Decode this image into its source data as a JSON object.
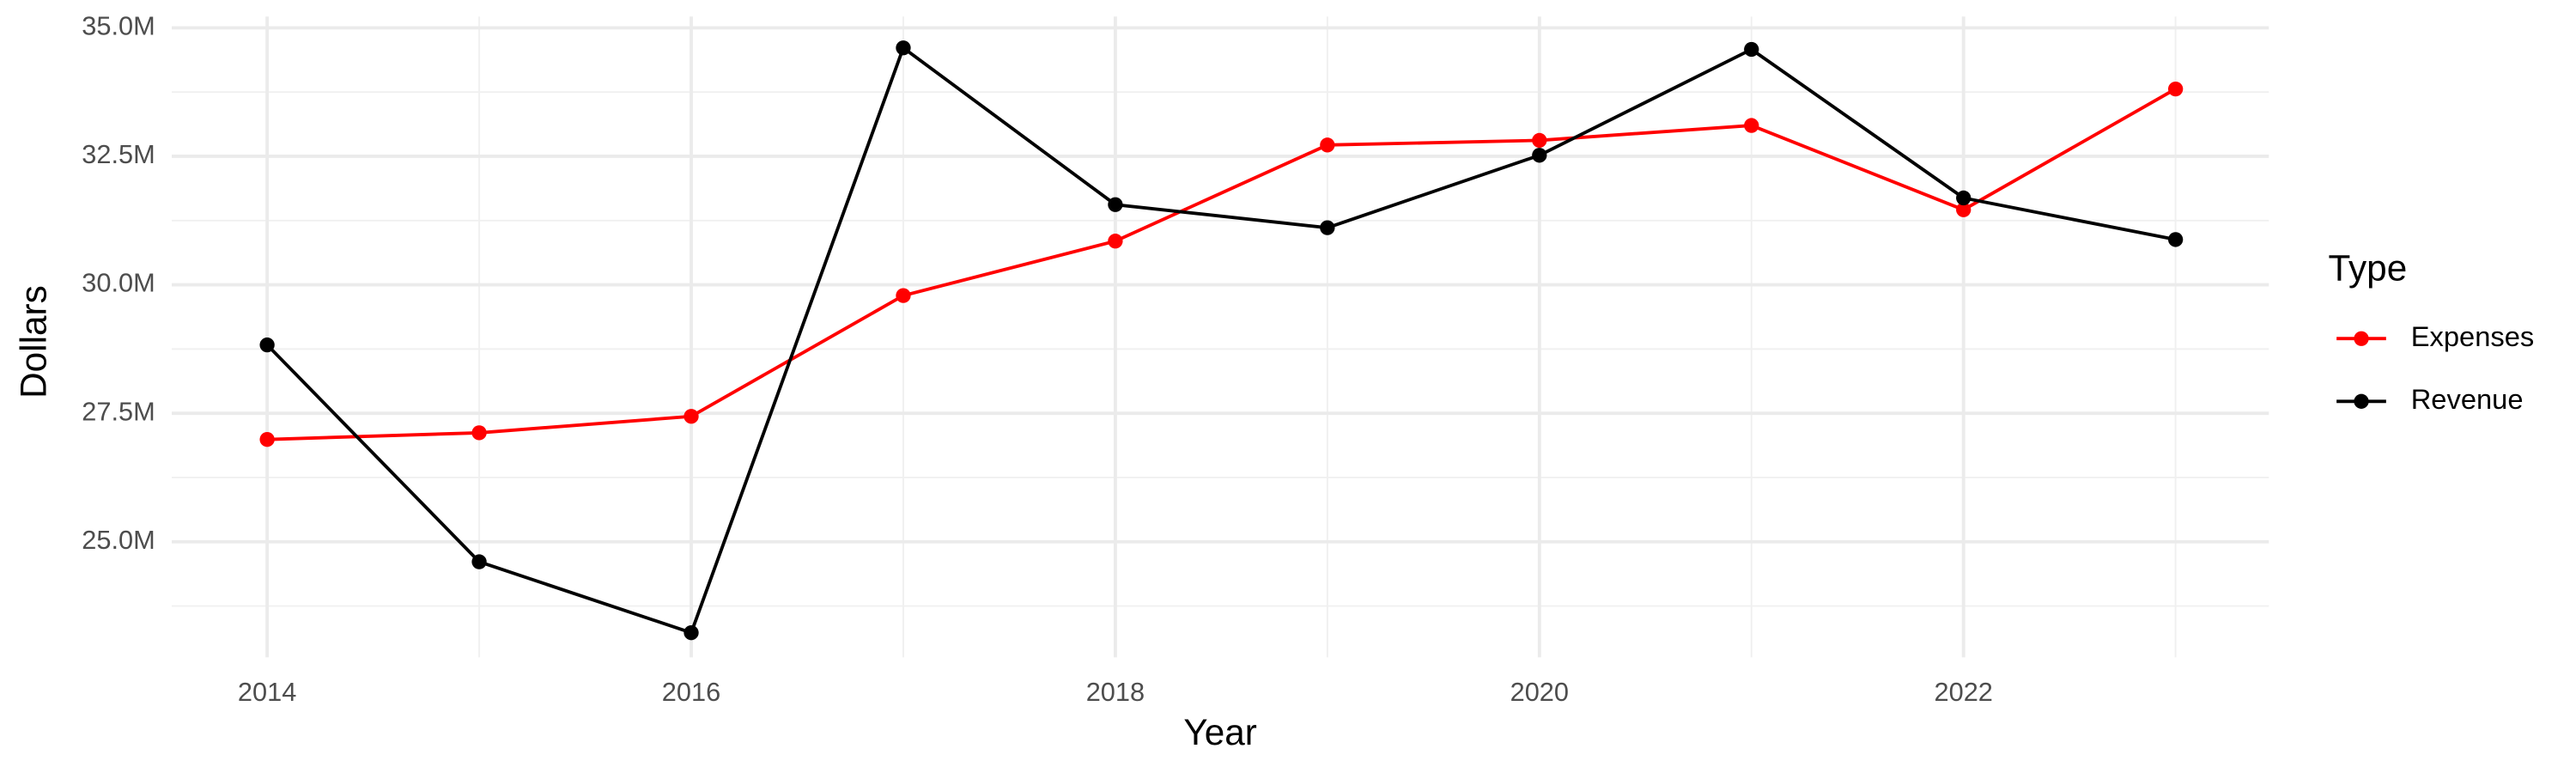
{
  "chart_data": {
    "type": "line",
    "x_label": "Year",
    "y_label": "Dollars",
    "legend_title": "Type",
    "legend_position": "right",
    "grid": true,
    "x": [
      2014,
      2015,
      2016,
      2017,
      2018,
      2019,
      2020,
      2021,
      2022,
      2023
    ],
    "xlim": [
      2013.55,
      2023.44
    ],
    "xticks": [
      2014,
      2016,
      2018,
      2020,
      2022
    ],
    "x_minor_ticks": [
      2015,
      2017,
      2019,
      2021,
      2023
    ],
    "ylim": [
      22.75,
      35.22
    ],
    "yticks": [
      {
        "value": 25,
        "label": "25.0M"
      },
      {
        "value": 27.5,
        "label": "27.5M"
      },
      {
        "value": 30,
        "label": "30.0M"
      },
      {
        "value": 32.5,
        "label": "32.5M"
      },
      {
        "value": 35,
        "label": "35.0M"
      }
    ],
    "y_minor_ticks": [
      23.75,
      26.25,
      28.75,
      31.25,
      33.75
    ],
    "series": [
      {
        "name": "Expenses",
        "color": "#ff0000",
        "values": [
          26.99,
          27.12,
          27.44,
          29.79,
          30.85,
          32.72,
          32.81,
          33.1,
          31.46,
          33.81
        ]
      },
      {
        "name": "Revenue",
        "color": "#000000",
        "values": [
          28.83,
          24.61,
          23.23,
          34.61,
          31.56,
          31.11,
          32.52,
          34.58,
          31.69,
          30.88
        ]
      }
    ]
  }
}
